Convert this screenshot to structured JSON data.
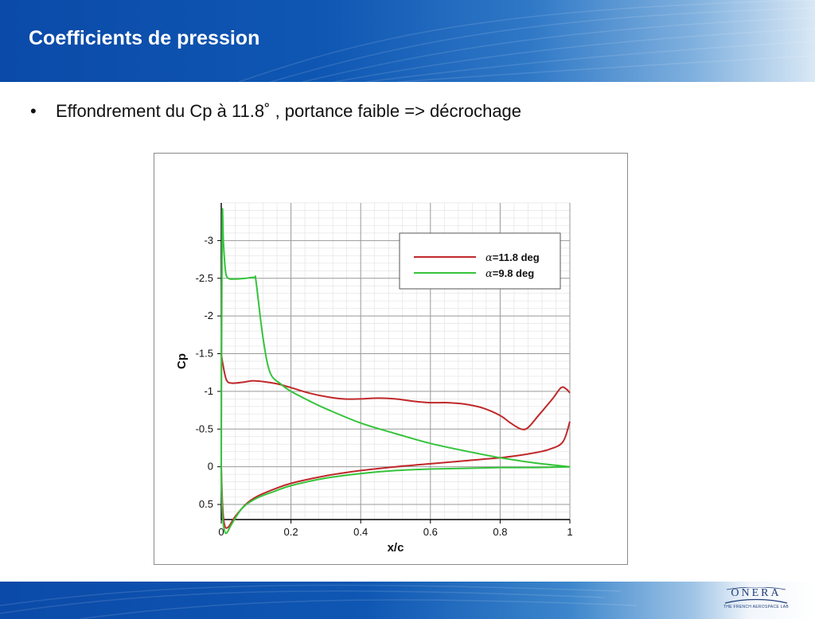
{
  "slide": {
    "title": "Coefficients de pression",
    "bullet_symbol": "•",
    "bullet_text": "Effondrement du Cp à 11.8˚ , portance faible => décrochage",
    "logo": {
      "word": "ONERA",
      "tagline": "THE FRENCH AEROSPACE LAB"
    },
    "colors": {
      "header_blue": "#0b4aa8",
      "curve_red": "#c0282a",
      "curve_green": "#34c43a"
    }
  },
  "chart_data": {
    "type": "line",
    "title": "",
    "xlabel": "x/c",
    "ylabel": "Cp",
    "xlim": [
      0,
      1
    ],
    "ylim": [
      0.7,
      -3.5
    ],
    "y_inverted": true,
    "grid": true,
    "legend_position": "top-right",
    "x_ticks": [
      "0",
      "0.2",
      "0.4",
      "0.6",
      "0.8",
      "1"
    ],
    "x_tick_values": [
      0,
      0.2,
      0.4,
      0.6,
      0.8,
      1
    ],
    "y_ticks": [
      "-3",
      "-2.5",
      "-2",
      "-1.5",
      "-1",
      "-0.5",
      "0",
      "0.5"
    ],
    "y_tick_values": [
      -3,
      -2.5,
      -2,
      -1.5,
      -1,
      -0.5,
      0,
      0.5
    ],
    "series": [
      {
        "name": "α=11.8 deg",
        "legend_symbol": "α",
        "legend_label": "=11.8 deg",
        "color": "#c0282a",
        "upper": [
          [
            0.0,
            -1.5
          ],
          [
            0.005,
            -1.35
          ],
          [
            0.015,
            -1.15
          ],
          [
            0.03,
            -1.11
          ],
          [
            0.06,
            -1.12
          ],
          [
            0.09,
            -1.14
          ],
          [
            0.12,
            -1.13
          ],
          [
            0.16,
            -1.1
          ],
          [
            0.2,
            -1.05
          ],
          [
            0.25,
            -0.98
          ],
          [
            0.3,
            -0.93
          ],
          [
            0.35,
            -0.9
          ],
          [
            0.4,
            -0.9
          ],
          [
            0.45,
            -0.91
          ],
          [
            0.5,
            -0.9
          ],
          [
            0.55,
            -0.87
          ],
          [
            0.6,
            -0.85
          ],
          [
            0.65,
            -0.85
          ],
          [
            0.7,
            -0.83
          ],
          [
            0.75,
            -0.78
          ],
          [
            0.8,
            -0.68
          ],
          [
            0.83,
            -0.58
          ],
          [
            0.86,
            -0.5
          ],
          [
            0.88,
            -0.52
          ],
          [
            0.91,
            -0.68
          ],
          [
            0.95,
            -0.9
          ],
          [
            0.975,
            -1.05
          ],
          [
            0.99,
            -1.03
          ],
          [
            1.0,
            -0.98
          ]
        ],
        "lower": [
          [
            0.0,
            0.0
          ],
          [
            0.004,
            0.55
          ],
          [
            0.01,
            0.78
          ],
          [
            0.02,
            0.8
          ],
          [
            0.04,
            0.66
          ],
          [
            0.07,
            0.5
          ],
          [
            0.1,
            0.4
          ],
          [
            0.15,
            0.3
          ],
          [
            0.2,
            0.22
          ],
          [
            0.3,
            0.12
          ],
          [
            0.4,
            0.05
          ],
          [
            0.5,
            0.0
          ],
          [
            0.6,
            -0.04
          ],
          [
            0.7,
            -0.08
          ],
          [
            0.8,
            -0.12
          ],
          [
            0.88,
            -0.17
          ],
          [
            0.94,
            -0.23
          ],
          [
            0.98,
            -0.33
          ],
          [
            1.0,
            -0.6
          ]
        ]
      },
      {
        "name": "α=9.8 deg",
        "legend_symbol": "α",
        "legend_label": "=9.8 deg",
        "color": "#34c43a",
        "upper": [
          [
            0.0,
            0.0
          ],
          [
            0.001,
            -1.5
          ],
          [
            0.003,
            -3.35
          ],
          [
            0.006,
            -3.0
          ],
          [
            0.012,
            -2.6
          ],
          [
            0.02,
            -2.5
          ],
          [
            0.04,
            -2.49
          ],
          [
            0.07,
            -2.5
          ],
          [
            0.095,
            -2.51
          ],
          [
            0.1,
            -2.45
          ],
          [
            0.12,
            -1.7
          ],
          [
            0.14,
            -1.25
          ],
          [
            0.17,
            -1.1
          ],
          [
            0.2,
            -1.0
          ],
          [
            0.25,
            -0.88
          ],
          [
            0.3,
            -0.77
          ],
          [
            0.4,
            -0.58
          ],
          [
            0.5,
            -0.44
          ],
          [
            0.6,
            -0.31
          ],
          [
            0.7,
            -0.21
          ],
          [
            0.8,
            -0.12
          ],
          [
            0.9,
            -0.05
          ],
          [
            1.0,
            0.0
          ]
        ],
        "lower": [
          [
            0.0,
            0.0
          ],
          [
            0.003,
            0.6
          ],
          [
            0.008,
            0.82
          ],
          [
            0.015,
            0.88
          ],
          [
            0.03,
            0.76
          ],
          [
            0.06,
            0.55
          ],
          [
            0.1,
            0.42
          ],
          [
            0.15,
            0.33
          ],
          [
            0.2,
            0.25
          ],
          [
            0.3,
            0.15
          ],
          [
            0.4,
            0.09
          ],
          [
            0.5,
            0.05
          ],
          [
            0.6,
            0.03
          ],
          [
            0.7,
            0.02
          ],
          [
            0.8,
            0.01
          ],
          [
            0.9,
            0.01
          ],
          [
            1.0,
            0.0
          ]
        ]
      }
    ]
  }
}
